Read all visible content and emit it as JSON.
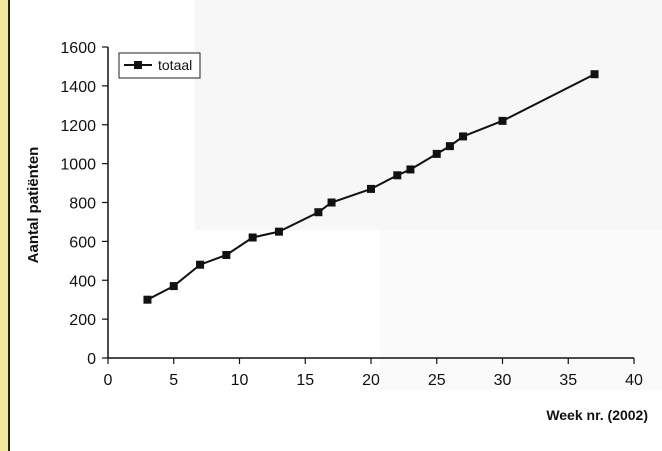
{
  "chart_data": {
    "type": "line",
    "title": "",
    "xlabel": "Week nr. (2002)",
    "ylabel": "Aantal patiënten",
    "xlim": [
      0,
      40
    ],
    "ylim": [
      0,
      1600
    ],
    "x_ticks": [
      "0",
      "5",
      "10",
      "15",
      "20",
      "25",
      "30",
      "35",
      "40"
    ],
    "y_ticks": [
      "0",
      "200",
      "400",
      "600",
      "800",
      "1000",
      "1200",
      "1400",
      "1600"
    ],
    "legend": "top-left",
    "grid": false,
    "series": [
      {
        "name": "totaal",
        "color": "#111111",
        "marker": "square",
        "x": [
          3,
          5,
          7,
          9,
          11,
          13,
          16,
          17,
          20,
          22,
          23,
          25,
          26,
          27,
          30,
          37
        ],
        "y": [
          300,
          370,
          480,
          530,
          620,
          650,
          750,
          800,
          870,
          940,
          970,
          1050,
          1090,
          1140,
          1220,
          1460
        ]
      }
    ]
  }
}
